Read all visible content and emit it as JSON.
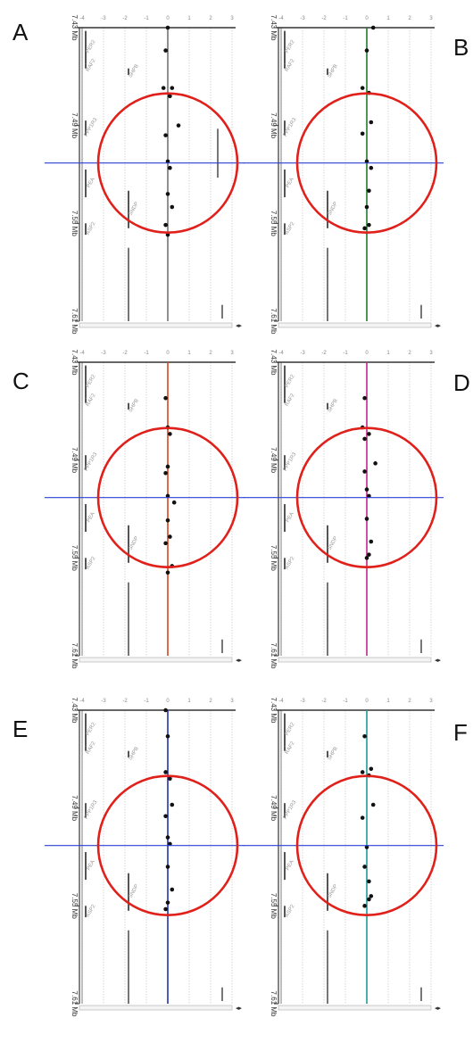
{
  "panels": [
    {
      "letter": "A",
      "trace_color": "#222222"
    },
    {
      "letter": "B",
      "trace_color": "#1f7a2e"
    },
    {
      "letter": "C",
      "trace_color": "#d9461e"
    },
    {
      "letter": "D",
      "trace_color": "#c2268a"
    },
    {
      "letter": "E",
      "trace_color": "#2233aa"
    },
    {
      "letter": "F",
      "trace_color": "#1a9a9a"
    }
  ],
  "colors": {
    "circle": "#e0201a",
    "crosshair": "#2b3fd6",
    "frame": "#333333",
    "gridline": "#bbbbbb",
    "gene_text": "#999999",
    "tick_text": "#888888",
    "dot": "#111111"
  },
  "chart_data": {
    "type": "scatter",
    "x_ticks": [
      "-4",
      "-3",
      "-2",
      "-1",
      "0",
      "1",
      "2",
      "3"
    ],
    "x_range": [
      -4,
      3
    ],
    "y_range": [
      7.43,
      7.61
    ],
    "y_ticks": [
      "7.43 Mb",
      "7.49 Mb",
      "7.55 Mb",
      "7.61 Mb"
    ],
    "genes": [
      {
        "label": "PER2",
        "start": 7.432,
        "end": 7.452
      },
      {
        "label": "RAF2",
        "start": 7.452,
        "end": 7.455
      },
      {
        "label": "SHPB",
        "start": 7.455,
        "end": 7.459
      },
      {
        "label": "PPP1R3",
        "start": 7.487,
        "end": 7.496
      },
      {
        "label": "PEA",
        "start": 7.517,
        "end": 7.534
      },
      {
        "label": "SNDP",
        "start": 7.53,
        "end": 7.553
      },
      {
        "label": "ASP2",
        "start": 7.55,
        "end": 7.557
      }
    ],
    "series": [
      {
        "points": [
          [
            0.0,
            7.43
          ],
          [
            -0.1,
            7.444
          ],
          [
            -0.2,
            7.467
          ],
          [
            0.2,
            7.467
          ],
          [
            0.1,
            7.472
          ],
          [
            0.5,
            7.49
          ],
          [
            -0.1,
            7.496
          ],
          [
            0.0,
            7.512
          ],
          [
            0.1,
            7.516
          ],
          [
            0.0,
            7.532
          ],
          [
            0.2,
            7.54
          ],
          [
            -0.1,
            7.551
          ],
          [
            0.0,
            7.557
          ]
        ]
      },
      {
        "points": [
          [
            0.3,
            7.43
          ],
          [
            0.0,
            7.444
          ],
          [
            -0.2,
            7.467
          ],
          [
            0.1,
            7.47
          ],
          [
            0.2,
            7.488
          ],
          [
            -0.2,
            7.495
          ],
          [
            0.0,
            7.512
          ],
          [
            0.2,
            7.516
          ],
          [
            0.1,
            7.53
          ],
          [
            0.0,
            7.54
          ],
          [
            0.1,
            7.551
          ],
          [
            -0.1,
            7.553
          ]
        ]
      },
      {
        "points": [
          [
            -0.1,
            7.452
          ],
          [
            0.0,
            7.47
          ],
          [
            0.1,
            7.474
          ],
          [
            0.0,
            7.494
          ],
          [
            -0.1,
            7.498
          ],
          [
            0.0,
            7.512
          ],
          [
            0.3,
            7.516
          ],
          [
            0.0,
            7.527
          ],
          [
            0.1,
            7.537
          ],
          [
            -0.1,
            7.541
          ],
          [
            0.2,
            7.555
          ],
          [
            0.0,
            7.559
          ]
        ]
      },
      {
        "points": [
          [
            -0.1,
            7.452
          ],
          [
            -0.2,
            7.47
          ],
          [
            0.1,
            7.474
          ],
          [
            -0.1,
            7.477
          ],
          [
            0.4,
            7.492
          ],
          [
            -0.1,
            7.497
          ],
          [
            0.0,
            7.508
          ],
          [
            0.1,
            7.512
          ],
          [
            0.0,
            7.526
          ],
          [
            0.2,
            7.54
          ],
          [
            0.1,
            7.548
          ],
          [
            0.0,
            7.55
          ]
        ]
      },
      {
        "points": [
          [
            -0.1,
            7.43
          ],
          [
            0.0,
            7.446
          ],
          [
            -0.1,
            7.468
          ],
          [
            0.1,
            7.472
          ],
          [
            0.2,
            7.488
          ],
          [
            -0.1,
            7.495
          ],
          [
            0.0,
            7.508
          ],
          [
            0.1,
            7.512
          ],
          [
            0.0,
            7.526
          ],
          [
            0.2,
            7.54
          ],
          [
            0.0,
            7.548
          ],
          [
            -0.1,
            7.552
          ]
        ]
      },
      {
        "points": [
          [
            -0.1,
            7.446
          ],
          [
            -0.2,
            7.468
          ],
          [
            0.1,
            7.47
          ],
          [
            0.2,
            7.466
          ],
          [
            0.3,
            7.488
          ],
          [
            -0.2,
            7.496
          ],
          [
            0.0,
            7.514
          ],
          [
            -0.1,
            7.526
          ],
          [
            0.1,
            7.535
          ],
          [
            0.2,
            7.544
          ],
          [
            0.1,
            7.546
          ],
          [
            -0.1,
            7.55
          ]
        ]
      }
    ]
  }
}
